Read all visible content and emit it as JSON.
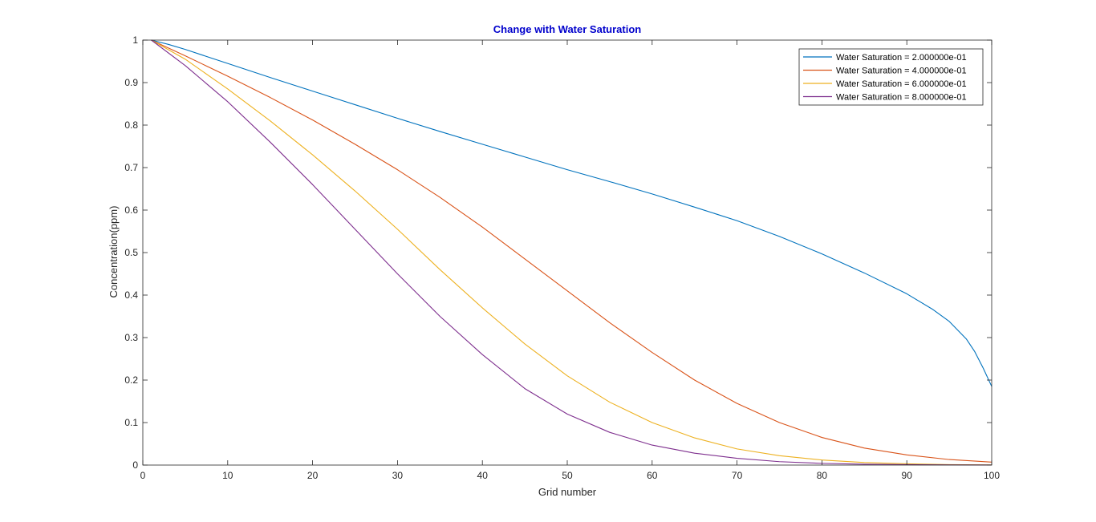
{
  "chart_data": {
    "type": "line",
    "title": "Change with Water Saturation",
    "xlabel": "Grid number",
    "ylabel": "Concentration(ppm)",
    "xlim": [
      0,
      100
    ],
    "ylim": [
      0,
      1
    ],
    "xticks": [
      "0",
      "10",
      "20",
      "30",
      "40",
      "50",
      "60",
      "70",
      "80",
      "90",
      "100"
    ],
    "yticks": [
      "0",
      "0.1",
      "0.2",
      "0.3",
      "0.4",
      "0.5",
      "0.6",
      "0.7",
      "0.8",
      "0.9",
      "1"
    ],
    "grid": false,
    "legend_position": "top-right",
    "colors": {
      "title": "#0000cc",
      "axis": "#262626"
    },
    "series": [
      {
        "name": "Water Saturation = 2.000000e-01",
        "color": "#0072bd",
        "x": [
          1,
          3,
          5,
          10,
          15,
          20,
          25,
          30,
          35,
          40,
          45,
          50,
          55,
          60,
          65,
          70,
          75,
          80,
          85,
          90,
          93,
          95,
          97,
          98,
          99,
          100
        ],
        "y": [
          1.0,
          0.99,
          0.978,
          0.945,
          0.912,
          0.88,
          0.848,
          0.816,
          0.785,
          0.755,
          0.725,
          0.695,
          0.667,
          0.638,
          0.607,
          0.575,
          0.538,
          0.497,
          0.452,
          0.403,
          0.367,
          0.338,
          0.297,
          0.267,
          0.228,
          0.185
        ]
      },
      {
        "name": "Water Saturation = 4.000000e-01",
        "color": "#d95319",
        "x": [
          1,
          5,
          10,
          15,
          20,
          25,
          30,
          35,
          40,
          45,
          50,
          55,
          60,
          65,
          70,
          75,
          80,
          85,
          90,
          95,
          100
        ],
        "y": [
          1.0,
          0.963,
          0.915,
          0.865,
          0.812,
          0.755,
          0.695,
          0.63,
          0.56,
          0.485,
          0.41,
          0.335,
          0.265,
          0.2,
          0.145,
          0.1,
          0.065,
          0.04,
          0.024,
          0.013,
          0.007
        ]
      },
      {
        "name": "Water Saturation = 6.000000e-01",
        "color": "#edb120",
        "x": [
          1,
          5,
          10,
          15,
          20,
          25,
          30,
          35,
          40,
          45,
          50,
          55,
          60,
          65,
          70,
          75,
          80,
          85,
          90,
          95,
          100
        ],
        "y": [
          1.0,
          0.955,
          0.885,
          0.81,
          0.73,
          0.645,
          0.555,
          0.46,
          0.37,
          0.285,
          0.21,
          0.148,
          0.1,
          0.064,
          0.038,
          0.022,
          0.012,
          0.006,
          0.003,
          0.001,
          0.0005
        ]
      },
      {
        "name": "Water Saturation = 8.000000e-01",
        "color": "#7e2f8e",
        "x": [
          1,
          5,
          10,
          15,
          20,
          25,
          30,
          35,
          40,
          45,
          50,
          55,
          60,
          65,
          70,
          75,
          80,
          85,
          90,
          95,
          100
        ],
        "y": [
          1.0,
          0.94,
          0.855,
          0.76,
          0.66,
          0.555,
          0.45,
          0.35,
          0.26,
          0.18,
          0.12,
          0.077,
          0.047,
          0.028,
          0.016,
          0.008,
          0.004,
          0.002,
          0.001,
          0.0005,
          0.0002
        ]
      }
    ]
  }
}
